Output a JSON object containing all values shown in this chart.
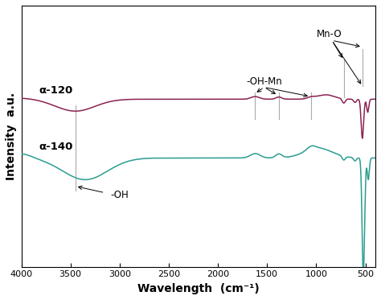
{
  "x_range": [
    400,
    4000
  ],
  "xlabel": "Wavelength  (cm⁻¹)",
  "ylabel": "Intensity  a.u.",
  "bg_color": "#ffffff",
  "line1_label": "α-120",
  "line1_color": "#8B2252",
  "line2_label": "α-140",
  "line2_color": "#2a9d8f",
  "line1_base": 0.62,
  "line2_base": 0.35,
  "vline_color": "#aaaaaa",
  "vline_positions": [
    3450,
    1625,
    1380,
    1050
  ],
  "arrow_color": "gray"
}
